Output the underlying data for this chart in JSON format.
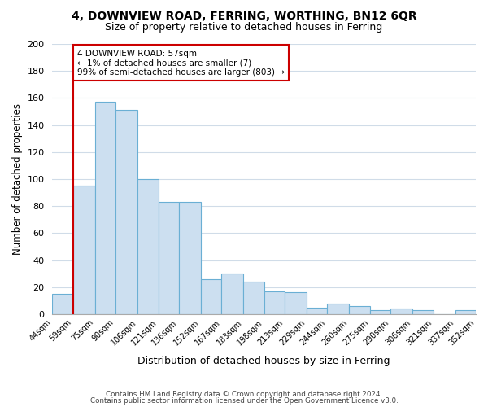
{
  "title": "4, DOWNVIEW ROAD, FERRING, WORTHING, BN12 6QR",
  "subtitle": "Size of property relative to detached houses in Ferring",
  "xlabel": "Distribution of detached houses by size in Ferring",
  "ylabel": "Number of detached properties",
  "bar_color": "#ccdff0",
  "bar_edge_color": "#6aafd4",
  "highlight_color": "#cc0000",
  "bin_edges": [
    44,
    59,
    75,
    90,
    106,
    121,
    136,
    152,
    167,
    183,
    198,
    213,
    229,
    244,
    260,
    275,
    290,
    306,
    321,
    337,
    352
  ],
  "bin_labels": [
    "44sqm",
    "59sqm",
    "75sqm",
    "90sqm",
    "106sqm",
    "121sqm",
    "136sqm",
    "152sqm",
    "167sqm",
    "183sqm",
    "198sqm",
    "213sqm",
    "229sqm",
    "244sqm",
    "260sqm",
    "275sqm",
    "290sqm",
    "306sqm",
    "321sqm",
    "337sqm",
    "352sqm"
  ],
  "counts": [
    15,
    95,
    157,
    151,
    100,
    83,
    83,
    26,
    30,
    24,
    17,
    16,
    5,
    8,
    6,
    3,
    4,
    3,
    0,
    3
  ],
  "ylim": [
    0,
    200
  ],
  "yticks": [
    0,
    20,
    40,
    60,
    80,
    100,
    120,
    140,
    160,
    180,
    200
  ],
  "annotation_title": "4 DOWNVIEW ROAD: 57sqm",
  "annotation_line1": "← 1% of detached houses are smaller (7)",
  "annotation_line2": "99% of semi-detached houses are larger (803) →",
  "footnote1": "Contains HM Land Registry data © Crown copyright and database right 2024.",
  "footnote2": "Contains public sector information licensed under the Open Government Licence v3.0.",
  "bg_color": "#ffffff",
  "grid_color": "#d0dce8",
  "red_line_x": 59
}
